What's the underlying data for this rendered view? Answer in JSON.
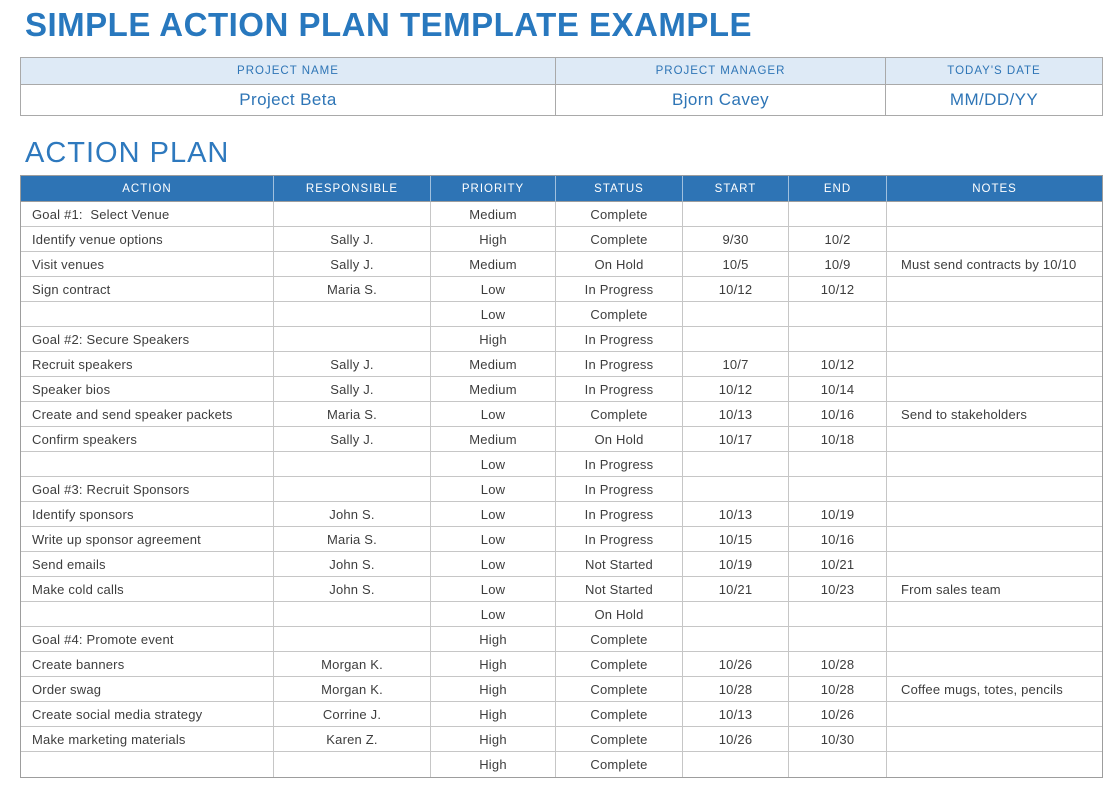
{
  "page": {
    "title": "SIMPLE ACTION PLAN TEMPLATE EXAMPLE",
    "section_heading": "ACTION PLAN"
  },
  "project_info": {
    "columns": [
      {
        "label": "PROJECT NAME",
        "value": "Project Beta"
      },
      {
        "label": "PROJECT MANAGER",
        "value": "Bjorn Cavey"
      },
      {
        "label": "TODAY'S DATE",
        "value": "MM/DD/YY"
      }
    ]
  },
  "action_table": {
    "headers": [
      "ACTION",
      "RESPONSIBLE",
      "PRIORITY",
      "STATUS",
      "START",
      "END",
      "NOTES"
    ],
    "rows": [
      {
        "goal": true,
        "action": "Goal #1:  Select Venue",
        "responsible": "",
        "priority": "Medium",
        "status": "Complete",
        "start": "",
        "end": "",
        "notes": ""
      },
      {
        "goal": false,
        "action": "Identify venue options",
        "responsible": "Sally J.",
        "priority": "High",
        "status": "Complete",
        "start": "9/30",
        "end": "10/2",
        "notes": ""
      },
      {
        "goal": false,
        "action": "Visit venues",
        "responsible": "Sally J.",
        "priority": "Medium",
        "status": "On Hold",
        "start": "10/5",
        "end": "10/9",
        "notes": "Must send contracts by 10/10"
      },
      {
        "goal": false,
        "action": "Sign contract",
        "responsible": "Maria S.",
        "priority": "Low",
        "status": "In Progress",
        "start": "10/12",
        "end": "10/12",
        "notes": ""
      },
      {
        "goal": false,
        "action": "",
        "responsible": "",
        "priority": "Low",
        "status": "Complete",
        "start": "",
        "end": "",
        "notes": ""
      },
      {
        "goal": true,
        "action": "Goal #2: Secure Speakers",
        "responsible": "",
        "priority": "High",
        "status": "In Progress",
        "start": "",
        "end": "",
        "notes": ""
      },
      {
        "goal": false,
        "action": "Recruit speakers",
        "responsible": "Sally J.",
        "priority": "Medium",
        "status": "In Progress",
        "start": "10/7",
        "end": "10/12",
        "notes": ""
      },
      {
        "goal": false,
        "action": "Speaker bios",
        "responsible": "Sally J.",
        "priority": "Medium",
        "status": "In Progress",
        "start": "10/12",
        "end": "10/14",
        "notes": ""
      },
      {
        "goal": false,
        "action": "Create and send speaker packets",
        "responsible": "Maria S.",
        "priority": "Low",
        "status": "Complete",
        "start": "10/13",
        "end": "10/16",
        "notes": "Send to stakeholders"
      },
      {
        "goal": false,
        "action": "Confirm speakers",
        "responsible": "Sally J.",
        "priority": "Medium",
        "status": "On Hold",
        "start": "10/17",
        "end": "10/18",
        "notes": ""
      },
      {
        "goal": false,
        "action": "",
        "responsible": "",
        "priority": "Low",
        "status": "In Progress",
        "start": "",
        "end": "",
        "notes": ""
      },
      {
        "goal": true,
        "action": "Goal #3: Recruit Sponsors",
        "responsible": "",
        "priority": "Low",
        "status": "In Progress",
        "start": "",
        "end": "",
        "notes": ""
      },
      {
        "goal": false,
        "action": "Identify sponsors",
        "responsible": "John S.",
        "priority": "Low",
        "status": "In Progress",
        "start": "10/13",
        "end": "10/19",
        "notes": ""
      },
      {
        "goal": false,
        "action": "Write up sponsor agreement",
        "responsible": "Maria S.",
        "priority": "Low",
        "status": "In Progress",
        "start": "10/15",
        "end": "10/16",
        "notes": ""
      },
      {
        "goal": false,
        "action": "Send emails",
        "responsible": "John S.",
        "priority": "Low",
        "status": "Not Started",
        "start": "10/19",
        "end": "10/21",
        "notes": ""
      },
      {
        "goal": false,
        "action": "Make cold calls",
        "responsible": "John S.",
        "priority": "Low",
        "status": "Not Started",
        "start": "10/21",
        "end": "10/23",
        "notes": "From sales team"
      },
      {
        "goal": false,
        "action": "",
        "responsible": "",
        "priority": "Low",
        "status": "On Hold",
        "start": "",
        "end": "",
        "notes": ""
      },
      {
        "goal": true,
        "action": "Goal #4: Promote event",
        "responsible": "",
        "priority": "High",
        "status": "Complete",
        "start": "",
        "end": "",
        "notes": ""
      },
      {
        "goal": false,
        "action": "Create banners",
        "responsible": "Morgan K.",
        "priority": "High",
        "status": "Complete",
        "start": "10/26",
        "end": "10/28",
        "notes": ""
      },
      {
        "goal": false,
        "action": "Order swag",
        "responsible": "Morgan K.",
        "priority": "High",
        "status": "Complete",
        "start": "10/28",
        "end": "10/28",
        "notes": "Coffee mugs, totes, pencils"
      },
      {
        "goal": false,
        "action": "Create social media strategy",
        "responsible": "Corrine J.",
        "priority": "High",
        "status": "Complete",
        "start": "10/13",
        "end": "10/26",
        "notes": ""
      },
      {
        "goal": false,
        "action": "Make marketing materials",
        "responsible": "Karen Z.",
        "priority": "High",
        "status": "Complete",
        "start": "10/26",
        "end": "10/30",
        "notes": ""
      },
      {
        "goal": false,
        "action": "",
        "responsible": "",
        "priority": "High",
        "status": "Complete",
        "start": "",
        "end": "",
        "notes": ""
      }
    ]
  },
  "colors": {
    "title_blue": "#2878be",
    "header_blue": "#2e74b5",
    "info_header_bg": "#deeaf6",
    "info_text_blue": "#2e75b6",
    "priority_high": "#ed7d31",
    "priority_medium": "#f4b183",
    "priority_low": "#fce4d6",
    "status_complete": "#e2efda",
    "status_in_progress": "#fff2cc",
    "status_on_hold": "#dcebf7",
    "status_not_started": "#d9d9d9",
    "goal_row_bg": "#d6dce4"
  }
}
